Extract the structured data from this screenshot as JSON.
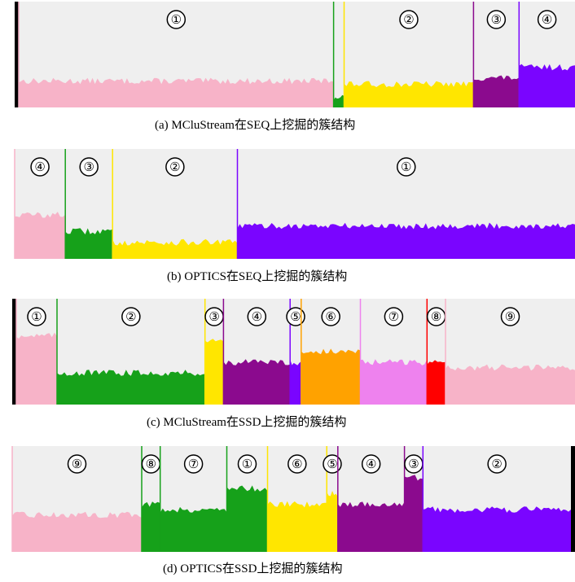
{
  "chart_data": [
    {
      "type": "area",
      "title": "(a) MCluStream在SEQ上挖掘的簇结构",
      "segments": [
        {
          "label": "①",
          "color": "#f7b3c8",
          "level": 0.25,
          "width": 0.9
        },
        {
          "label": "",
          "color": "#16a11a",
          "level": 0.1,
          "width": 0.03
        },
        {
          "label": "②",
          "color": "#ffe600",
          "level": 0.22,
          "width": 0.37
        },
        {
          "label": "③",
          "color": "#8b0a8e",
          "level": 0.28,
          "width": 0.13
        },
        {
          "label": "④",
          "color": "#7a05ff",
          "level": 0.38,
          "width": 0.16
        }
      ]
    },
    {
      "type": "area",
      "title": "(b) OPTICS在SEQ上挖掘的簇结构",
      "segments": [
        {
          "label": "④",
          "color": "#f7b3c8",
          "level": 0.4,
          "width": 0.15
        },
        {
          "label": "③",
          "color": "#16a11a",
          "level": 0.25,
          "width": 0.14
        },
        {
          "label": "②",
          "color": "#ffe600",
          "level": 0.15,
          "width": 0.37
        },
        {
          "label": "①",
          "color": "#7a05ff",
          "level": 0.3,
          "width": 1.0
        }
      ]
    },
    {
      "type": "area",
      "title": "(c) MCluStream在SSD上挖掘的簇结构",
      "segments": [
        {
          "label": "①",
          "color": "#f7b3c8",
          "level": 0.65,
          "width": 0.11
        },
        {
          "label": "②",
          "color": "#16a11a",
          "level": 0.3,
          "width": 0.4
        },
        {
          "label": "③",
          "color": "#ffe600",
          "level": 0.6,
          "width": 0.05
        },
        {
          "label": "④",
          "color": "#8b0a8e",
          "level": 0.4,
          "width": 0.18
        },
        {
          "label": "⑤",
          "color": "#7a05ff",
          "level": 0.4,
          "width": 0.03
        },
        {
          "label": "⑥",
          "color": "#ffa200",
          "level": 0.5,
          "width": 0.16
        },
        {
          "label": "⑦",
          "color": "#ee82ee",
          "level": 0.4,
          "width": 0.18
        },
        {
          "label": "⑧",
          "color": "#ff0000",
          "level": 0.4,
          "width": 0.05
        },
        {
          "label": "⑨",
          "color": "#f7b3c8",
          "level": 0.35,
          "width": 0.35
        }
      ]
    },
    {
      "type": "area",
      "title": "(d) OPTICS在SSD上挖掘的簇结构",
      "segments": [
        {
          "label": "⑨",
          "color": "#f7b3c8",
          "level": 0.35,
          "width": 0.35
        },
        {
          "label": "⑧",
          "color": "#16a11a",
          "level": 0.45,
          "width": 0.05
        },
        {
          "label": "⑦",
          "color": "#16a11a",
          "level": 0.4,
          "width": 0.18
        },
        {
          "label": "①",
          "color": "#16a11a",
          "level": 0.6,
          "width": 0.11
        },
        {
          "label": "⑥",
          "color": "#ffe600",
          "level": 0.45,
          "width": 0.16
        },
        {
          "label": "⑤",
          "color": "#ffe600",
          "level": 0.55,
          "width": 0.03
        },
        {
          "label": "④",
          "color": "#8b0a8e",
          "level": 0.45,
          "width": 0.18
        },
        {
          "label": "③",
          "color": "#8b0a8e",
          "level": 0.7,
          "width": 0.05
        },
        {
          "label": "②",
          "color": "#7a05ff",
          "level": 0.4,
          "width": 0.4
        }
      ]
    }
  ],
  "colors": {
    "background_panel": "#efefef",
    "black_bar": "#000000"
  }
}
